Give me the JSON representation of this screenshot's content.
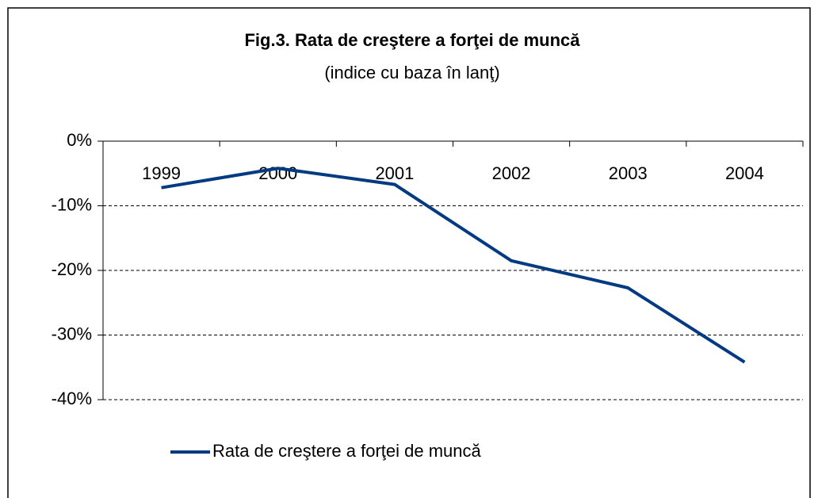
{
  "chart_data": {
    "type": "line",
    "title": "Fig.3. Rata de creştere a forţei de muncă",
    "subtitle": "(indice cu baza în lanţ)",
    "categories": [
      "1999",
      "2000",
      "2001",
      "2002",
      "2003",
      "2004"
    ],
    "series": [
      {
        "name": "Rata de creştere a forţei de muncă",
        "color": "#003a80",
        "values": [
          -7.2,
          -4.2,
          -6.7,
          -18.5,
          -22.7,
          -34.2
        ]
      }
    ],
    "ylim": [
      -40,
      0
    ],
    "yticks": [
      {
        "value": 0,
        "label": "0%"
      },
      {
        "value": -10,
        "label": "-10%"
      },
      {
        "value": -20,
        "label": "-20%"
      },
      {
        "value": -30,
        "label": "-30%"
      },
      {
        "value": -40,
        "label": "-40%"
      }
    ],
    "grid": true,
    "legend": "bottom"
  }
}
